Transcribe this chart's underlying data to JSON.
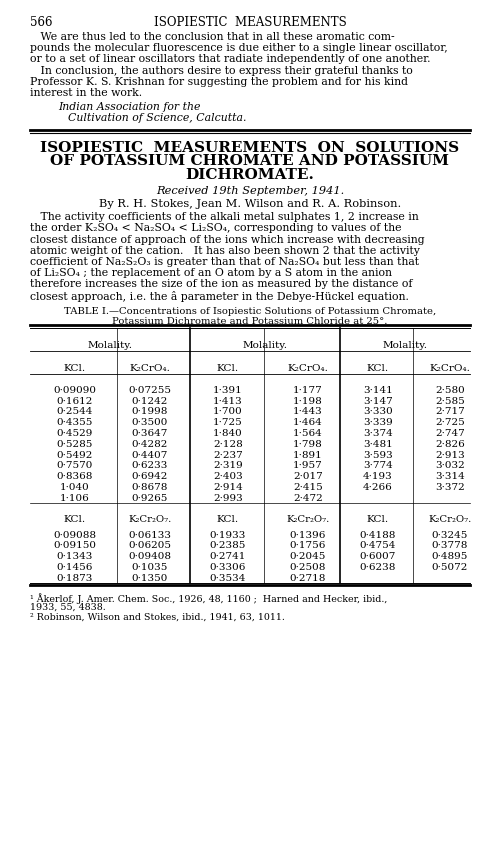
{
  "page_number": "566",
  "header_title": "ISOPIESTIC  MEASUREMENTS",
  "top_paragraphs": [
    "   We are thus led to the conclusion that in all these aromatic com-",
    "pounds the molecular fluorescence is due either to a single linear oscillator,",
    "or to a set of linear oscillators that radiate independently of one another.",
    "   In conclusion, the authors desire to express their grateful thanks to",
    "Professor K. S. Krishnan for suggesting the problem and for his kind",
    "interest in the work."
  ],
  "italic_line1": "Indian Association for the",
  "italic_line2": "    Cultivation of Science, Calcutta.",
  "article_title_lines": [
    "ISOPIESTIC  MEASUREMENTS  ON  SOLUTIONS",
    "OF POTASSIUM CHROMATE AND POTASSIUM",
    "DICHROMATE."
  ],
  "received_line": "Received 19th September, 1941.",
  "authors_line": "By R. H. Stokes, Jean M. Wilson and R. A. Robinson.",
  "body_lines": [
    "   The activity coefficients of the alkali metal sulphates 1, 2 increase in",
    "the order K₂SO₄ < Na₂SO₄ < Li₂SO₄, corresponding to values of the",
    "closest distance of approach of the ions which increase with decreasing",
    "atomic weight of the cation.   It has also been shown 2 that the activity",
    "coefficient of Na₂S₂O₃ is greater than that of Na₂SO₄ but less than that",
    "of Li₂SO₄ ; the replacement of an O atom by a S atom in the anion",
    "therefore increases the size of the ion as measured by the distance of",
    "closest approach, i.e. the â parameter in the Debye-Hückel equation."
  ],
  "table_caption_line1": "TABLE I.—Concentrations of Isopiestic Solutions of Potassium Chromate,",
  "table_caption_line2": "Potassium Dichromate and Potassium Chloride at 25°.",
  "data_kcro4_col1": [
    [
      "0·09090",
      "0·07255"
    ],
    [
      "0·1612",
      "0·1242"
    ],
    [
      "0·2544",
      "0·1998"
    ],
    [
      "0·4355",
      "0·3500"
    ],
    [
      "0·4529",
      "0·3647"
    ],
    [
      "0·5285",
      "0·4282"
    ],
    [
      "0·5492",
      "0·4407"
    ],
    [
      "0·7570",
      "0·6233"
    ],
    [
      "0·8368",
      "0·6942"
    ],
    [
      "1·040",
      "0·8678"
    ],
    [
      "1·106",
      "0·9265"
    ]
  ],
  "data_kcro4_col2": [
    [
      "1·391",
      "1·177"
    ],
    [
      "1·413",
      "1·198"
    ],
    [
      "1·700",
      "1·443"
    ],
    [
      "1·725",
      "1·464"
    ],
    [
      "1·840",
      "1·564"
    ],
    [
      "2·128",
      "1·798"
    ],
    [
      "2·237",
      "1·891"
    ],
    [
      "2·319",
      "1·957"
    ],
    [
      "2·403",
      "2·017"
    ],
    [
      "2·914",
      "2·415"
    ],
    [
      "2·993",
      "2·472"
    ]
  ],
  "data_kcro4_col3": [
    [
      "3·141",
      "2·580"
    ],
    [
      "3·147",
      "2·585"
    ],
    [
      "3·330",
      "2·717"
    ],
    [
      "3·339",
      "2·725"
    ],
    [
      "3·374",
      "2·747"
    ],
    [
      "3·481",
      "2·826"
    ],
    [
      "3·593",
      "2·913"
    ],
    [
      "3·774",
      "3·032"
    ],
    [
      "4·193",
      "3·314"
    ],
    [
      "4·266",
      "3·372"
    ]
  ],
  "data_kcr2o7_col1": [
    [
      "0·09088",
      "0·06133"
    ],
    [
      "0·09150",
      "0·06205"
    ],
    [
      "0·1343",
      "0·09408"
    ],
    [
      "0·1456",
      "0·1035"
    ],
    [
      "0·1873",
      "0·1350"
    ]
  ],
  "data_kcr2o7_col2": [
    [
      "0·1933",
      "0·1396"
    ],
    [
      "0·2385",
      "0·1756"
    ],
    [
      "0·2741",
      "0·2045"
    ],
    [
      "0·3306",
      "0·2508"
    ],
    [
      "0·3534",
      "0·2718"
    ]
  ],
  "data_kcr2o7_col3": [
    [
      "0·4188",
      "0·3245"
    ],
    [
      "0·4754",
      "0·3778"
    ],
    [
      "0·6007",
      "0·4895"
    ],
    [
      "0·6238",
      "0·5072"
    ]
  ],
  "footnote1": "¹ Åkerlof, J. Amer. Chem. Soc., 1926, 48, 1160 ;  Harned and Hecker, ibid.,",
  "footnote1b": "1933, 55, 4838.",
  "footnote2": "² Robinson, Wilson and Stokes, ibid., 1941, 63, 1011."
}
